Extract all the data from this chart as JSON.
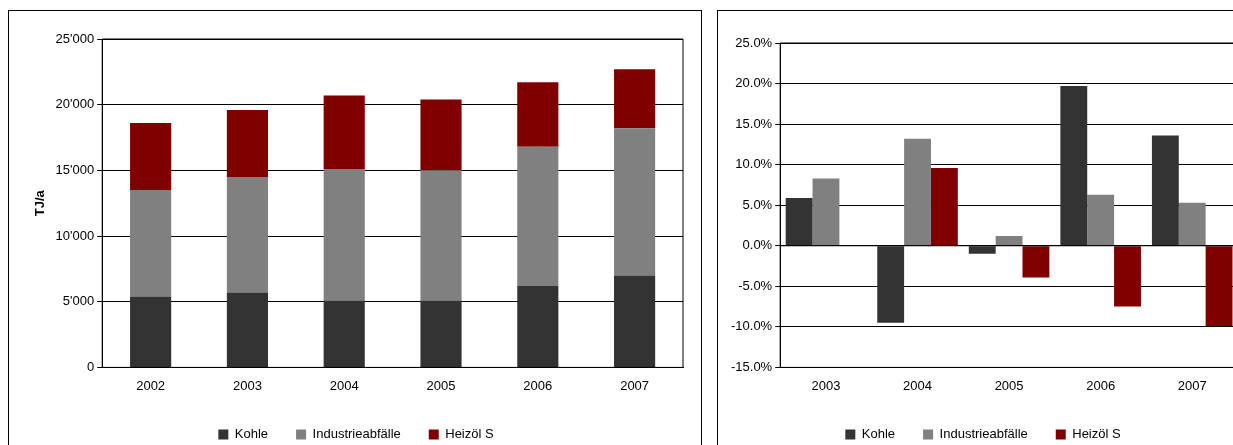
{
  "chart_data": [
    {
      "type": "bar",
      "stacked": true,
      "ylabel": "TJ/a",
      "categories": [
        "2002",
        "2003",
        "2004",
        "2005",
        "2006",
        "2007"
      ],
      "series": [
        {
          "name": "Kohle",
          "color": "#333333",
          "values": [
            5400,
            5700,
            5100,
            5100,
            6200,
            7000
          ]
        },
        {
          "name": "Industrieabfälle",
          "color": "#808080",
          "values": [
            8100,
            8800,
            10000,
            9900,
            10600,
            11200
          ]
        },
        {
          "name": "Heizöl S",
          "color": "#800000",
          "values": [
            5100,
            5100,
            5600,
            5400,
            4900,
            4500
          ]
        }
      ],
      "ylim": [
        0,
        25000
      ],
      "yticks": [
        {
          "value": 0,
          "label": "0"
        },
        {
          "value": 5000,
          "label": "5'000"
        },
        {
          "value": 10000,
          "label": "10'000"
        },
        {
          "value": 15000,
          "label": "15'000"
        },
        {
          "value": 20000,
          "label": "20'000"
        },
        {
          "value": 25000,
          "label": "25'000"
        }
      ],
      "grid": "y",
      "legend": "bottom"
    },
    {
      "type": "bar",
      "categories": [
        "2003",
        "2004",
        "2005",
        "2006",
        "2007"
      ],
      "series": [
        {
          "name": "Kohle",
          "color": "#333333",
          "values": [
            5.9,
            -9.5,
            -1.0,
            19.7,
            13.6
          ]
        },
        {
          "name": "Industrieabfälle",
          "color": "#808080",
          "values": [
            8.3,
            13.2,
            1.2,
            6.3,
            5.3
          ]
        },
        {
          "name": "Heizöl S",
          "color": "#800000",
          "values": [
            null,
            9.6,
            -3.9,
            -7.5,
            -9.9
          ]
        }
      ],
      "ylim": [
        -15,
        25
      ],
      "yticks": [
        {
          "value": -15,
          "label": "-15.0%"
        },
        {
          "value": -10,
          "label": "-10.0%"
        },
        {
          "value": -5,
          "label": "-5.0%"
        },
        {
          "value": 0,
          "label": "0.0%"
        },
        {
          "value": 5,
          "label": "5.0%"
        },
        {
          "value": 10,
          "label": "10.0%"
        },
        {
          "value": 15,
          "label": "15.0%"
        },
        {
          "value": 20,
          "label": "20.0%"
        },
        {
          "value": 25,
          "label": "25.0%"
        }
      ],
      "grid": "y",
      "legend": "bottom"
    }
  ]
}
